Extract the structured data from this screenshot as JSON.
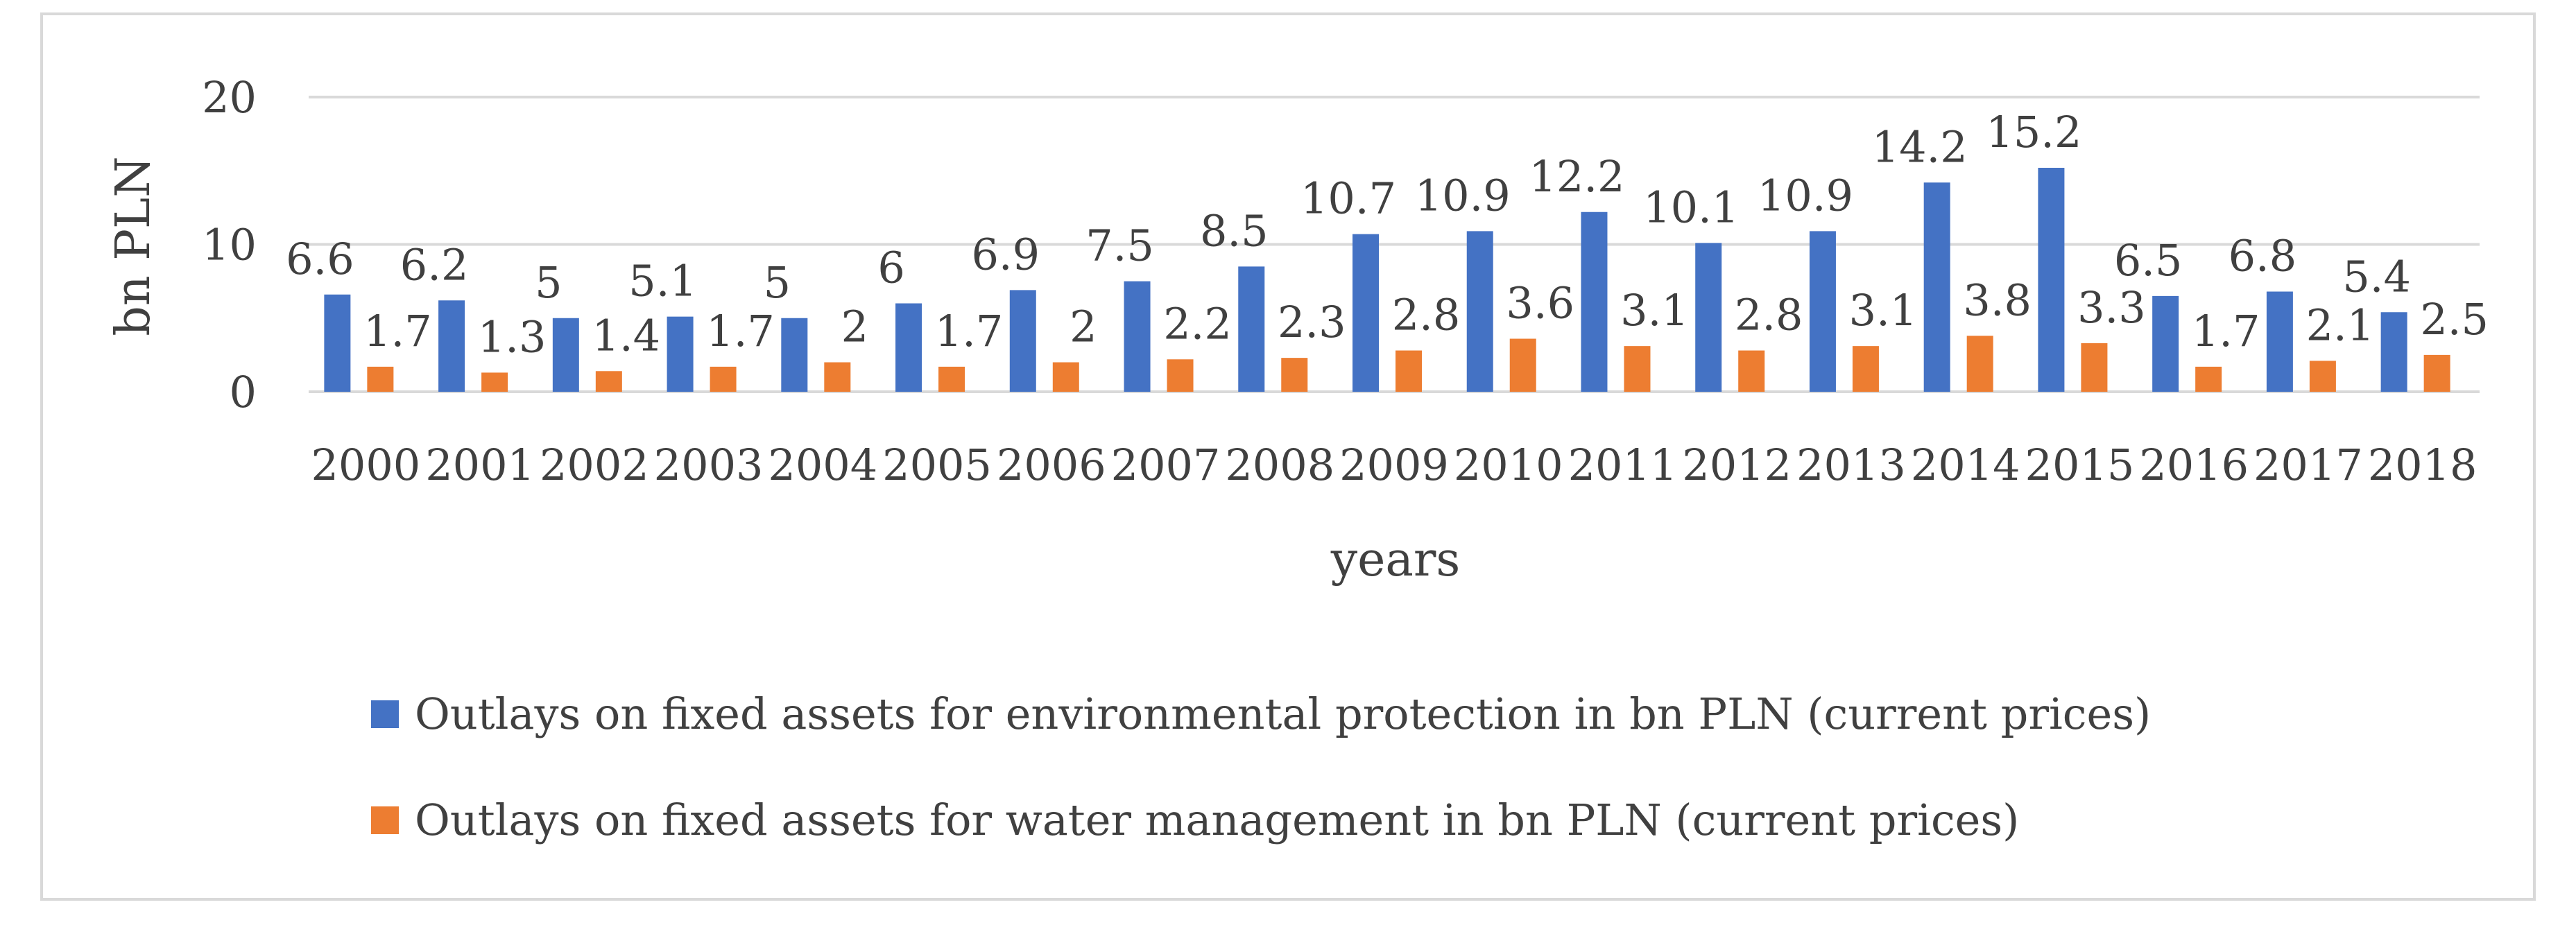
{
  "chart_data": {
    "type": "bar",
    "title": "",
    "xlabel": "years",
    "ylabel": "bn PLN",
    "ylim": [
      0,
      20
    ],
    "yticks": [
      0,
      10,
      20
    ],
    "grid": true,
    "legend_position": "bottom",
    "categories": [
      "2000",
      "2001",
      "2002",
      "2003",
      "2004",
      "2005",
      "2006",
      "2007",
      "2008",
      "2009",
      "2010",
      "2011",
      "2012",
      "2013",
      "2014",
      "2015",
      "2016",
      "2017",
      "2018"
    ],
    "series": [
      {
        "name": "Outlays on fixed assets for environmental protection in bn PLN (current prices)",
        "color": "#4472c4",
        "values": [
          6.6,
          6.2,
          5,
          5.1,
          5,
          6,
          6.9,
          7.5,
          8.5,
          10.7,
          10.9,
          12.2,
          10.1,
          10.9,
          14.2,
          15.2,
          6.5,
          6.8,
          5.4
        ]
      },
      {
        "name": "Outlays on fixed assets for water management in bn PLN (current prices)",
        "color": "#ed7d31",
        "values": [
          1.7,
          1.3,
          1.4,
          1.7,
          2,
          1.7,
          2,
          2.2,
          2.3,
          2.8,
          3.6,
          3.1,
          2.8,
          3.1,
          3.8,
          3.3,
          1.7,
          2.1,
          2.5
        ]
      }
    ]
  }
}
